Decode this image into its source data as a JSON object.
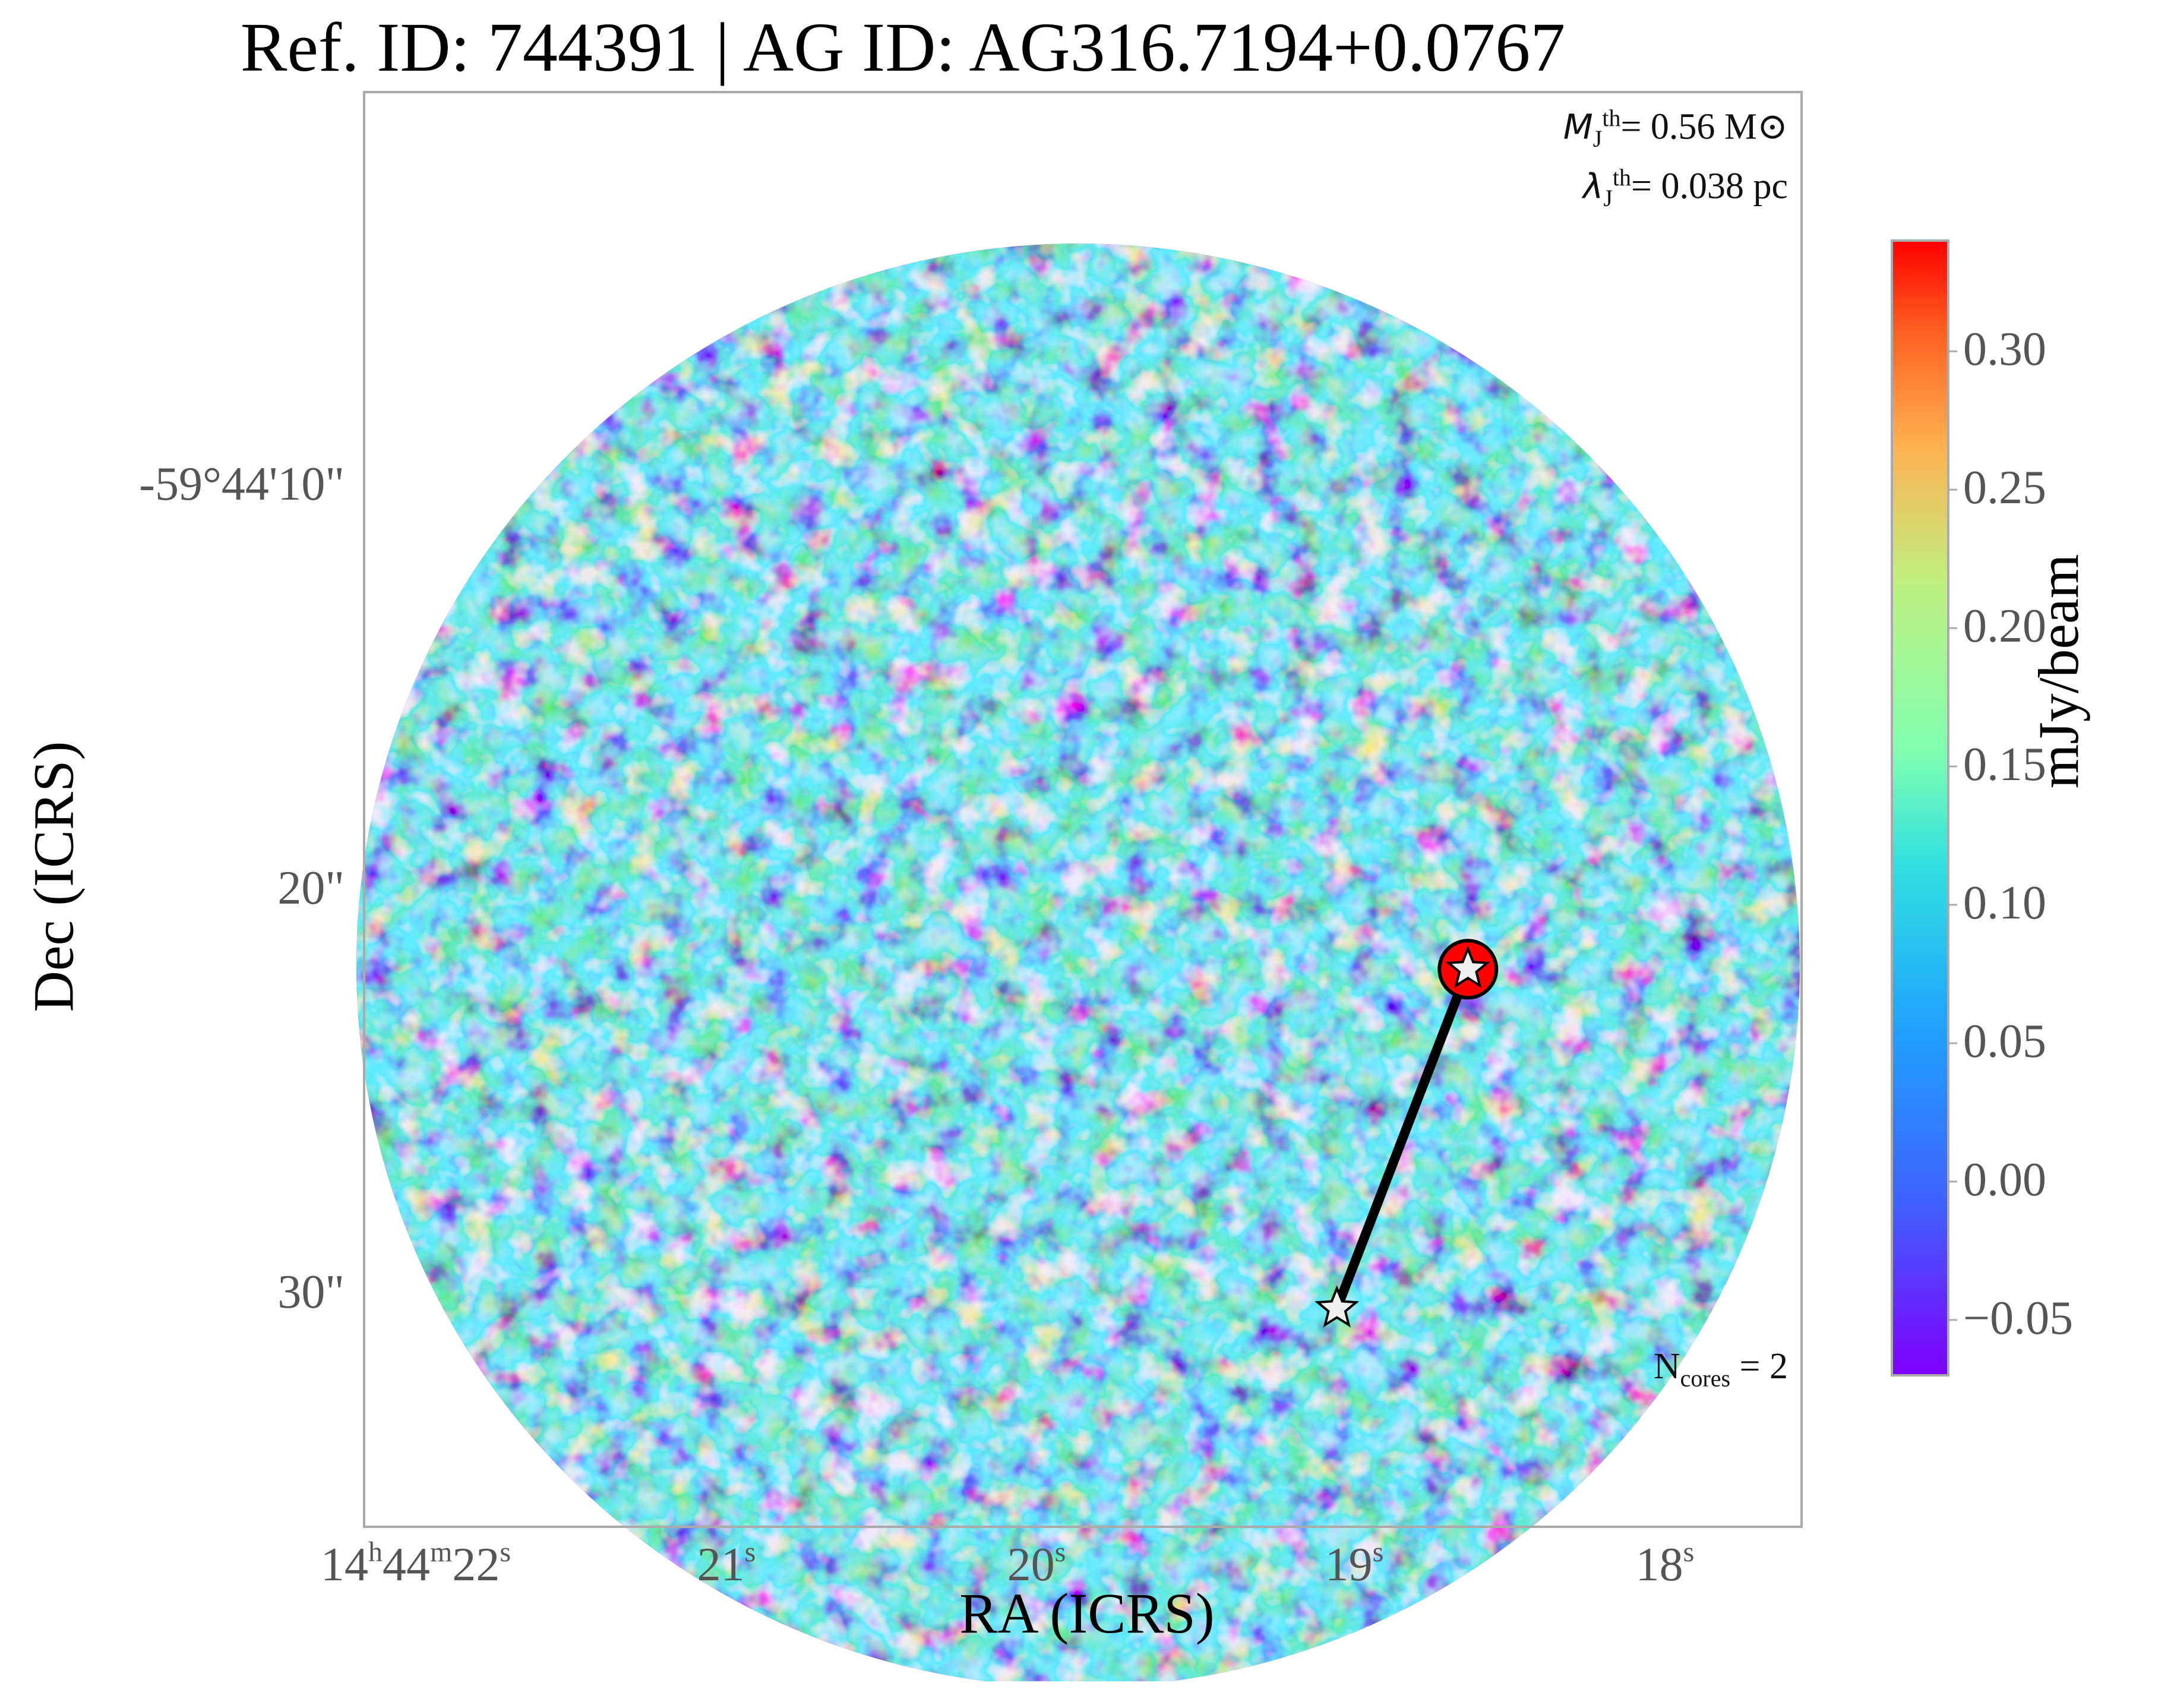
{
  "chart_data": {
    "type": "heatmap",
    "title": "Ref. ID: 744391 | AG ID: AG316.7194+0.0767",
    "xlabel": "RA (ICRS)",
    "ylabel": "Dec (ICRS)",
    "x_ticks": [
      {
        "label_main": "14",
        "h": "h",
        "mid": "44",
        "m": "m",
        "sec": "22",
        "s": "s"
      },
      {
        "label_main": "21",
        "s": "s"
      },
      {
        "label_main": "20",
        "s": "s"
      },
      {
        "label_main": "19",
        "s": "s"
      },
      {
        "label_main": "18",
        "s": "s"
      }
    ],
    "y_ticks": [
      "-59°44'10\"",
      "20\"",
      "30\""
    ],
    "colorbar": {
      "label": "mJy/beam",
      "colormap": "rainbow",
      "range": [
        -0.07,
        0.34
      ],
      "ticks": [
        "0.30",
        "0.25",
        "0.20",
        "0.15",
        "0.10",
        "0.05",
        "0.00",
        "−0.05"
      ],
      "tick_values": [
        0.3,
        0.25,
        0.2,
        0.15,
        0.1,
        0.05,
        0.0,
        -0.05
      ]
    },
    "annotations": {
      "jeans_mass": {
        "symbol": "M",
        "sub": "J",
        "sup": "th",
        "value": "= 0.56 M",
        "unit_symbol": "⊙"
      },
      "jeans_length": {
        "symbol": "λ",
        "sub": "J",
        "sup": "th",
        "value": "= 0.038 pc"
      },
      "n_cores": {
        "prefix": "N",
        "sub": "cores",
        "value": " = 2"
      }
    },
    "cores": [
      {
        "ra_s": 18.75,
        "dec_offset_arcsec": 22.3
      },
      {
        "ra_s": 19.17,
        "dec_offset_arcsec": 30.7
      }
    ],
    "colors": {
      "low": "#7f00ff",
      "high": "#ff0000",
      "star_fill": "#f0f0f0",
      "link": "#000000"
    }
  }
}
